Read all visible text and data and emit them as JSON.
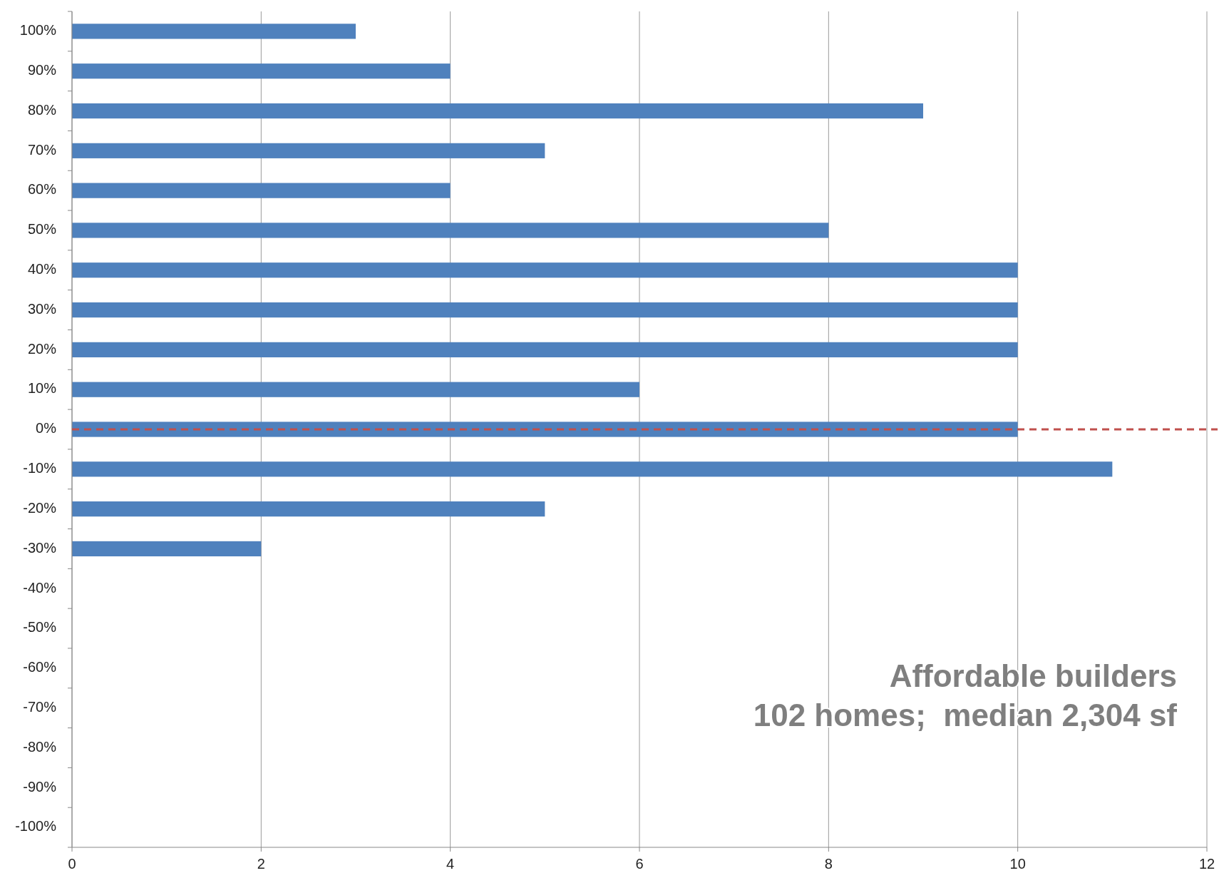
{
  "chart_data": {
    "type": "bar",
    "orientation": "horizontal",
    "categories": [
      "100%",
      "90%",
      "80%",
      "70%",
      "60%",
      "50%",
      "40%",
      "30%",
      "20%",
      "10%",
      "0%",
      "-10%",
      "-20%",
      "-30%",
      "-40%",
      "-50%",
      "-60%",
      "-70%",
      "-80%",
      "-90%",
      "-100%"
    ],
    "values": [
      3,
      4,
      9,
      5,
      4,
      8,
      10,
      10,
      10,
      6,
      10,
      11,
      5,
      2,
      0,
      0,
      0,
      0,
      0,
      0,
      0
    ],
    "color": "#4f81bd",
    "xlim": [
      0,
      12
    ],
    "xticks": [
      0,
      2,
      4,
      6,
      8,
      10,
      12
    ],
    "grid": "x",
    "ref_lines": [
      {
        "axis": "y",
        "value": "0%",
        "color": "#c0504d",
        "line_style": "dashed"
      }
    ],
    "annotations": [
      "Affordable builders",
      "102 homes;  median 2,304 sf"
    ]
  }
}
